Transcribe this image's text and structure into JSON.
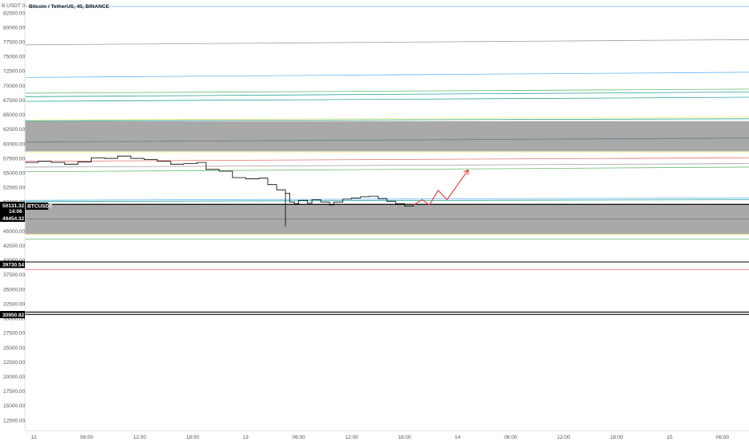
{
  "header": {
    "currency": "B USDT 0",
    "title": "Bitcoin / TetherUS, 45, BINANCE"
  },
  "price_tags": {
    "last": "50131.32",
    "countdown": "14:06",
    "symbol": "BTCUSDT",
    "level1": "49454.32",
    "level2": "39730.54",
    "level3": "30950.82"
  },
  "colors": {
    "zone_fill": "#a9a9a9",
    "black": "#000000",
    "red_projection": "#e53935",
    "blue_line": "#64b5f6",
    "green_line": "#66bb6a",
    "teal_line": "#26a69a",
    "yellow_line": "#fff176",
    "pink_line": "#e57373"
  },
  "chart_data": {
    "type": "candlestick",
    "title": "Bitcoin / TetherUS, 45, BINANCE",
    "ylim": [
      10000,
      85000
    ],
    "yticks": [
      "82500.00",
      "80000.00",
      "77500.00",
      "75000.00",
      "72500.00",
      "70000.00",
      "67500.00",
      "65000.00",
      "62500.00",
      "60000.00",
      "57500.00",
      "55000.00",
      "52500.00",
      "50000.00",
      "47500.00",
      "45000.00",
      "42500.00",
      "40000.00",
      "37500.00",
      "35000.00",
      "32500.00",
      "30000.00",
      "27500.00",
      "25000.00",
      "22500.00",
      "20000.00",
      "17500.00",
      "15000.00",
      "12500.00"
    ],
    "x_labels": [
      "12",
      "06:00",
      "12:00",
      "18:00",
      "13",
      "06:00",
      "12:00",
      "18:00",
      "14",
      "06:00",
      "12:00",
      "18:00",
      "15",
      "06:00"
    ],
    "x_label_hours": [
      0,
      6,
      12,
      18,
      24,
      30,
      36,
      42,
      48,
      54,
      60,
      66,
      72,
      78
    ],
    "x_hours_range": [
      -1,
      81
    ],
    "zones": [
      {
        "from": 58700,
        "to": 63900
      },
      {
        "from": 44500,
        "to": 49700
      }
    ],
    "trend_lines": [
      {
        "color": "#64b5f6",
        "start": [
          -1,
          83600
        ],
        "end": [
          81,
          83600
        ]
      },
      {
        "color": "#9e9e9e",
        "start": [
          -1,
          77000
        ],
        "end": [
          81,
          77900
        ]
      },
      {
        "color": "#64b5f6",
        "start": [
          -1,
          71400
        ],
        "end": [
          81,
          72300
        ]
      },
      {
        "color": "#66bb6a",
        "start": [
          -1,
          68700
        ],
        "end": [
          81,
          69400
        ]
      },
      {
        "color": "#26a69a",
        "start": [
          -1,
          68100
        ],
        "end": [
          81,
          68900
        ]
      },
      {
        "color": "#26a69a",
        "start": [
          -1,
          67300
        ],
        "end": [
          81,
          68000
        ]
      },
      {
        "color": "#fff176",
        "start": [
          -1,
          64100
        ],
        "end": [
          81,
          64600
        ]
      },
      {
        "color": "#26a69a",
        "start": [
          -1,
          63950
        ],
        "end": [
          81,
          64300
        ]
      },
      {
        "color": "#607d8b",
        "start": [
          -1,
          60300
        ],
        "end": [
          81,
          61000
        ]
      },
      {
        "color": "#fff176",
        "start": [
          -1,
          58600
        ],
        "end": [
          81,
          58600
        ]
      },
      {
        "color": "#e57373",
        "start": [
          -1,
          57000
        ],
        "end": [
          81,
          57600
        ]
      },
      {
        "color": "#9e9e9e",
        "start": [
          -1,
          56000
        ],
        "end": [
          81,
          56600
        ]
      },
      {
        "color": "#66bb6a",
        "start": [
          -1,
          55200
        ],
        "end": [
          81,
          56000
        ]
      },
      {
        "color": "#64b5f6",
        "start": [
          -1,
          50300
        ],
        "end": [
          81,
          50700
        ]
      },
      {
        "color": "#26a69a",
        "start": [
          -1,
          50100
        ],
        "end": [
          81,
          50400
        ]
      },
      {
        "color": "#000000",
        "start": [
          -1,
          49600
        ],
        "end": [
          81,
          49600
        ]
      },
      {
        "color": "#607d8b",
        "start": [
          -1,
          47100
        ],
        "end": [
          81,
          47100
        ]
      },
      {
        "color": "#fff176",
        "start": [
          -1,
          44400
        ],
        "end": [
          81,
          44400
        ]
      },
      {
        "color": "#66bb6a",
        "start": [
          -1,
          43600
        ],
        "end": [
          81,
          43600
        ]
      },
      {
        "color": "#000000",
        "start": [
          -1,
          39700
        ],
        "end": [
          81,
          39700
        ]
      },
      {
        "color": "#e57373",
        "start": [
          -1,
          38400
        ],
        "end": [
          81,
          38400
        ]
      },
      {
        "color": "#000000",
        "start": [
          -1,
          31100
        ],
        "end": [
          81,
          31100
        ]
      },
      {
        "color": "#000000",
        "start": [
          -1,
          30700
        ],
        "end": [
          81,
          30700
        ]
      }
    ],
    "price_path": [
      [
        -1,
        56800
      ],
      [
        0.5,
        57000
      ],
      [
        2,
        56800
      ],
      [
        3.5,
        56500
      ],
      [
        5,
        56900
      ],
      [
        6.5,
        57600
      ],
      [
        8,
        57500
      ],
      [
        9.5,
        57900
      ],
      [
        11,
        57500
      ],
      [
        12.5,
        57300
      ],
      [
        14,
        57000
      ],
      [
        15.5,
        56500
      ],
      [
        17,
        56600
      ],
      [
        18.5,
        56800
      ],
      [
        19.5,
        55600
      ],
      [
        21,
        55300
      ],
      [
        22.5,
        54200
      ],
      [
        24,
        54000
      ],
      [
        25.5,
        54100
      ],
      [
        26.5,
        53000
      ],
      [
        27.5,
        52100
      ],
      [
        28.5,
        51500
      ],
      [
        29,
        50000
      ],
      [
        29.5,
        49700
      ],
      [
        30,
        50300
      ],
      [
        31,
        49800
      ],
      [
        31.5,
        50400
      ],
      [
        32.5,
        50000
      ],
      [
        33.5,
        49500
      ],
      [
        34,
        50000
      ],
      [
        35,
        50500
      ],
      [
        36,
        50700
      ],
      [
        37,
        50900
      ],
      [
        38,
        51000
      ],
      [
        39,
        50600
      ],
      [
        40,
        50100
      ],
      [
        41,
        49700
      ],
      [
        42,
        49300
      ],
      [
        43,
        49500
      ]
    ],
    "spike": [
      28.5,
      45800
    ],
    "projection": [
      [
        43,
        49500
      ],
      [
        44,
        50400
      ],
      [
        44.8,
        49500
      ],
      [
        45.8,
        52000
      ],
      [
        46.8,
        50400
      ],
      [
        49.2,
        55500
      ]
    ]
  }
}
